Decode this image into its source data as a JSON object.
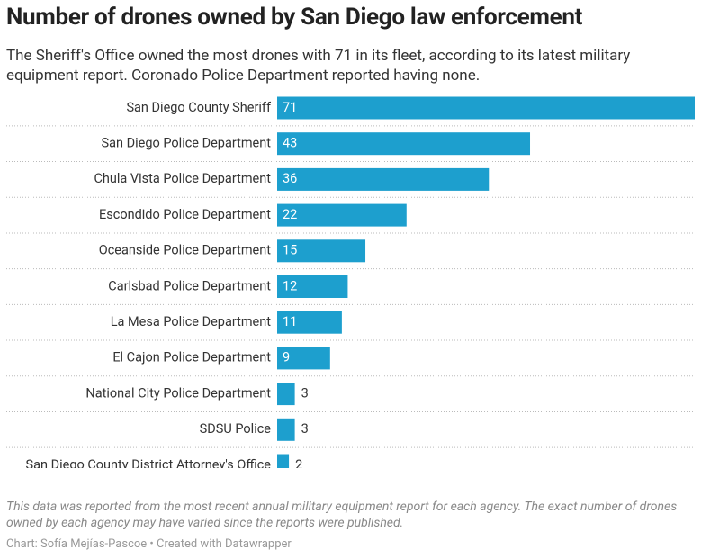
{
  "chart_data": {
    "type": "bar",
    "orientation": "horizontal",
    "title": "Number of drones owned by San Diego law enforcement",
    "subtitle": "The Sheriff's Office owned the most drones with 71 in its fleet, according to its latest military equipment report. Coronado Police Department reported having none.",
    "categories": [
      "San Diego County Sheriff",
      "San Diego Police Department",
      "Chula Vista Police Department",
      "Escondido Police Department",
      "Oceanside Police Department",
      "Carlsbad Police Department",
      "La Mesa Police Department",
      "El Cajon Police Department",
      "National City Police Department",
      "SDSU Police",
      "San Diego County District Attorney's Office"
    ],
    "values": [
      71,
      43,
      36,
      22,
      15,
      12,
      11,
      9,
      3,
      3,
      2
    ],
    "color": "#1d9fce",
    "note": "This data was reported from the most recent annual military equipment report for each agency. The exact number of drones owned by each agency may have varied since the reports were published.",
    "credit": "Chart: Sofía Mejías-Pascoe • Created with Datawrapper"
  }
}
